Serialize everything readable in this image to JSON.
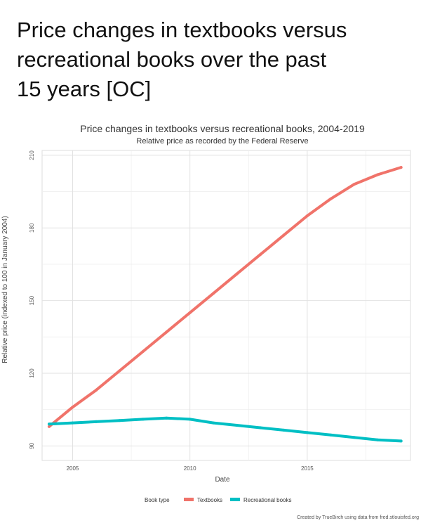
{
  "post": {
    "title_lines": [
      "Price changes in textbooks versus",
      "recreational books over the past",
      "15 years [OC]"
    ]
  },
  "chart_data": {
    "type": "line",
    "title": "Price changes in textbooks versus recreational books, 2004-2019",
    "subtitle": "Relative price as recorded by the Federal Reserve",
    "xlabel": "Date",
    "ylabel": "Relative price (indexed to 100 in January 2004)",
    "xlim": [
      2003.7,
      2019.4
    ],
    "ylim": [
      84,
      212
    ],
    "x_ticks": [
      2005,
      2010,
      2015
    ],
    "x_tick_labels": [
      "2005",
      "2010",
      "2015"
    ],
    "y_ticks": [
      90,
      120,
      150,
      180,
      210
    ],
    "y_tick_labels": [
      "90",
      "120",
      "150",
      "180",
      "210"
    ],
    "grid": true,
    "legend": {
      "title": "Book type",
      "placement": "bottom",
      "entries": [
        "Textbooks",
        "Recreational books"
      ]
    },
    "caption": "Created by TrueBirch using data from fred.stlouisfed.org",
    "series": [
      {
        "name": "Textbooks",
        "color": "#f0736a",
        "x": [
          2004,
          2005,
          2006,
          2007,
          2008,
          2009,
          2010,
          2011,
          2012,
          2013,
          2014,
          2015,
          2016,
          2017,
          2018,
          2019
        ],
        "y": [
          98,
          106,
          113,
          121,
          129,
          137,
          145,
          153,
          161,
          169,
          177,
          185,
          192,
          198,
          202,
          205
        ]
      },
      {
        "name": "Recreational books",
        "color": "#00bfc4",
        "x": [
          2004,
          2005,
          2006,
          2007,
          2008,
          2009,
          2010,
          2011,
          2012,
          2013,
          2014,
          2015,
          2016,
          2017,
          2018,
          2019
        ],
        "y": [
          99,
          99.5,
          100,
          100.5,
          101,
          101.5,
          101,
          99.5,
          98.5,
          97.5,
          96.5,
          95.5,
          94.5,
          93.5,
          92.5,
          92
        ]
      }
    ]
  }
}
